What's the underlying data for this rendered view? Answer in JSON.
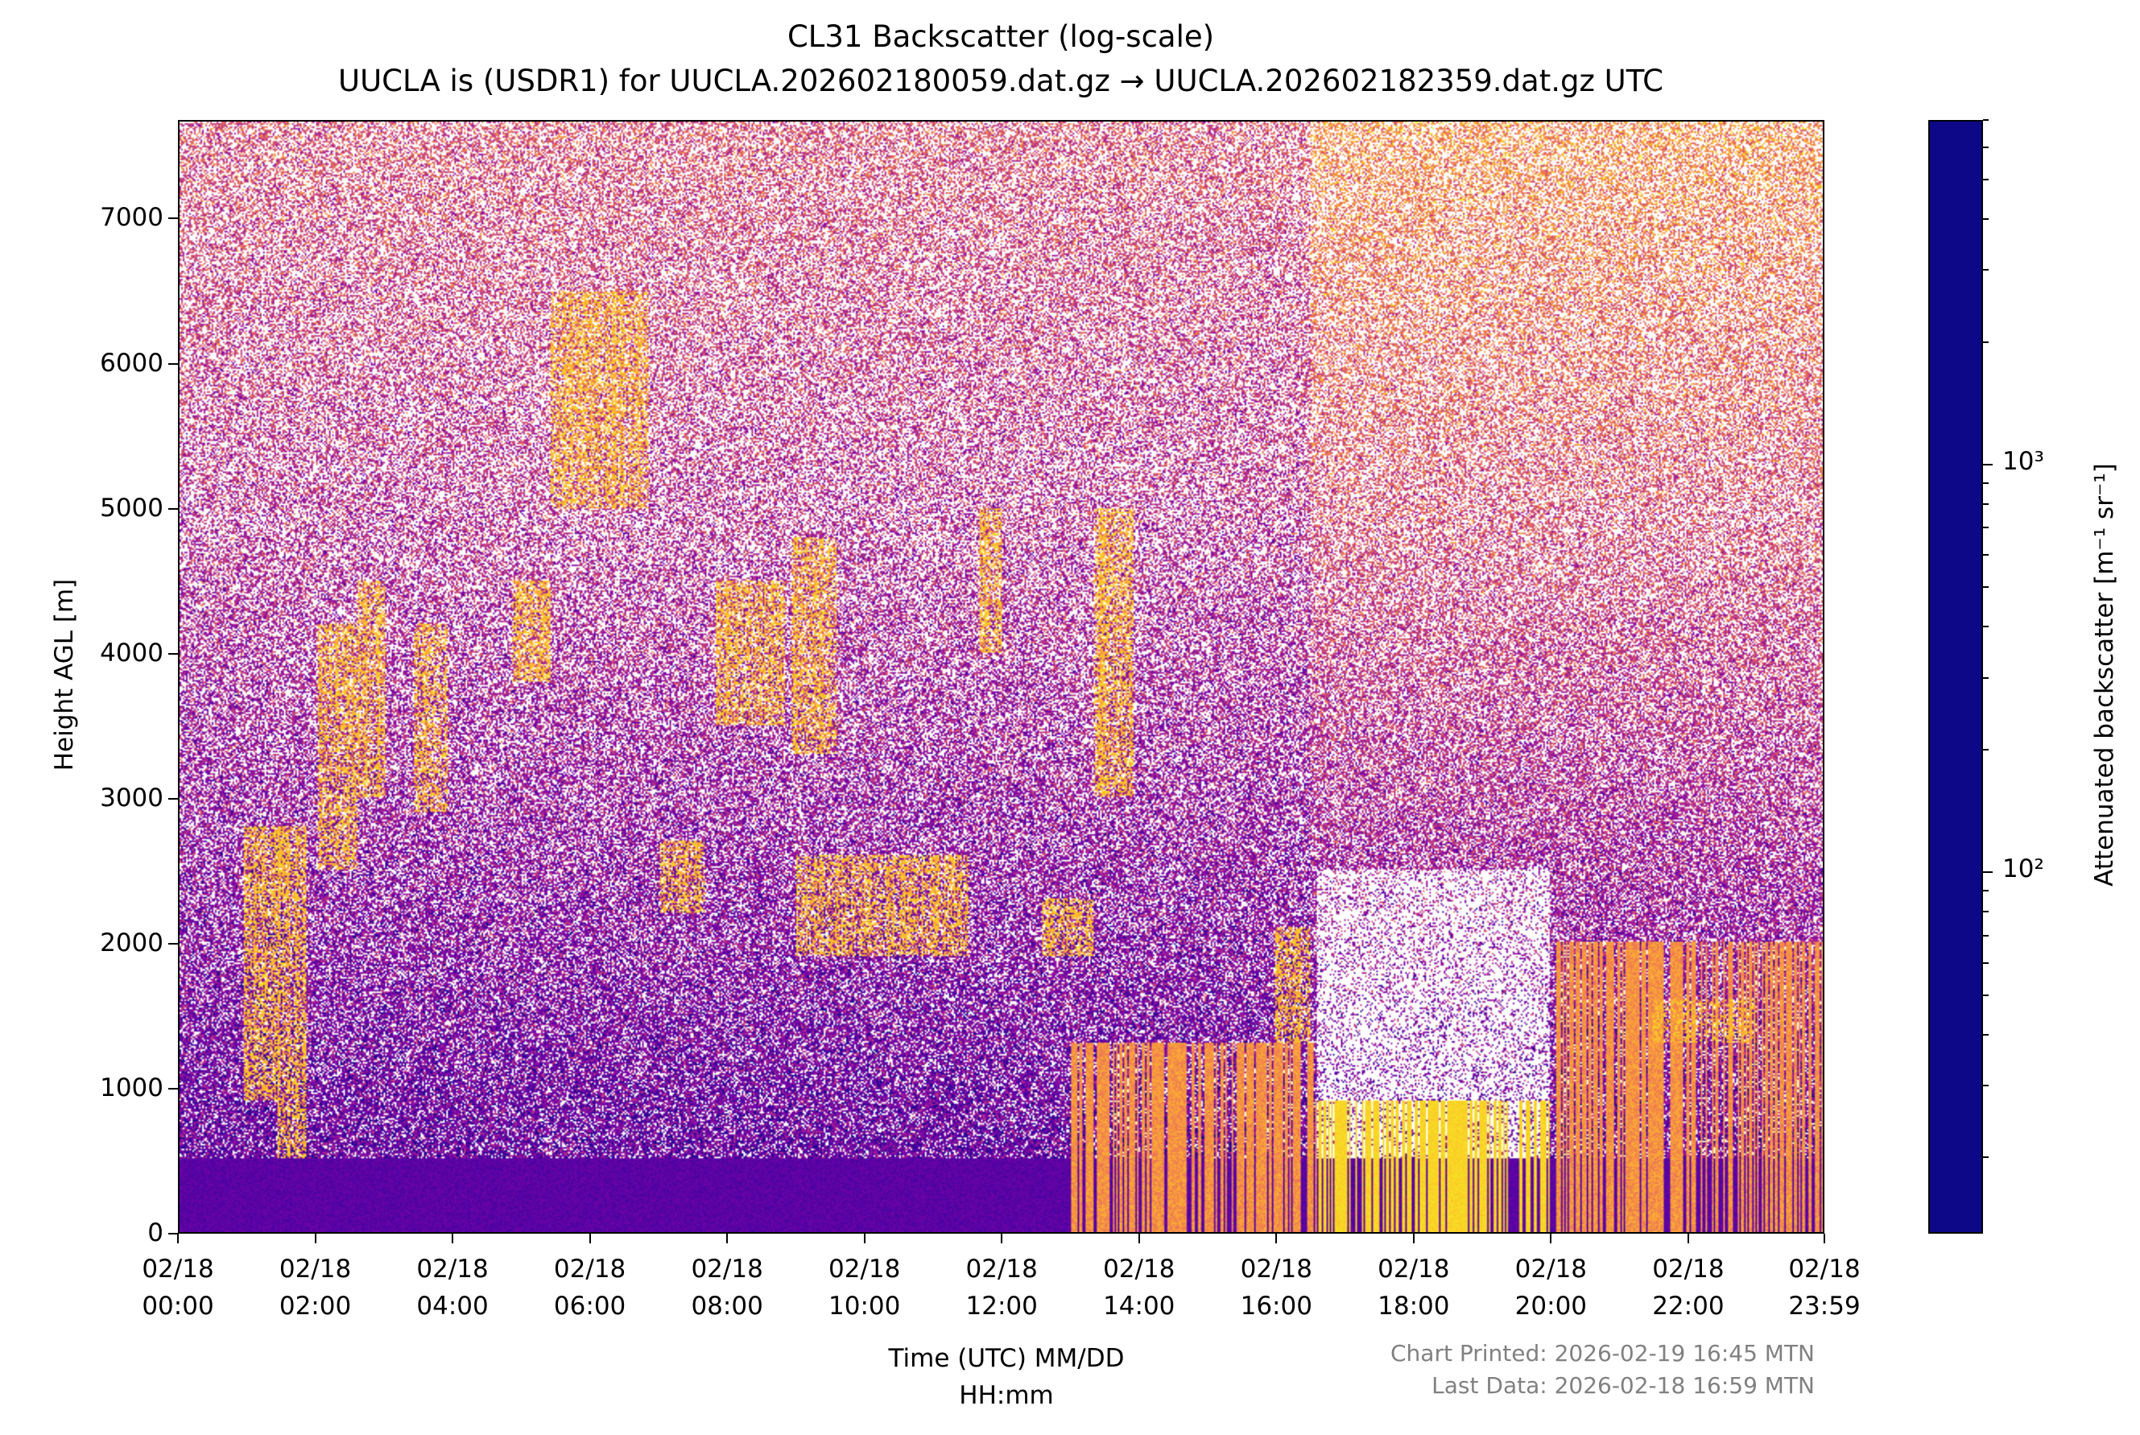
{
  "chart_data": {
    "type": "heatmap",
    "title": "CL31 Backscatter (log-scale)",
    "subtitle": "UUCLA is (USDR1) for UUCLA.202602180059.dat.gz → UUCLA.202602182359.dat.gz UTC",
    "xlabel_line1": "Time (UTC) MM/DD",
    "xlabel_line2": "HH:mm",
    "ylabel": "Height AGL [m]",
    "x_ticks": [
      {
        "date": "02/18",
        "time": "00:00"
      },
      {
        "date": "02/18",
        "time": "02:00"
      },
      {
        "date": "02/18",
        "time": "04:00"
      },
      {
        "date": "02/18",
        "time": "06:00"
      },
      {
        "date": "02/18",
        "time": "08:00"
      },
      {
        "date": "02/18",
        "time": "10:00"
      },
      {
        "date": "02/18",
        "time": "12:00"
      },
      {
        "date": "02/18",
        "time": "14:00"
      },
      {
        "date": "02/18",
        "time": "16:00"
      },
      {
        "date": "02/18",
        "time": "18:00"
      },
      {
        "date": "02/18",
        "time": "20:00"
      },
      {
        "date": "02/18",
        "time": "22:00"
      },
      {
        "date": "02/18",
        "time": "23:59"
      }
    ],
    "xlim": [
      "02/18 00:00",
      "02/18 23:59"
    ],
    "y_ticks": [
      "0",
      "1000",
      "2000",
      "3000",
      "4000",
      "5000",
      "6000",
      "7000"
    ],
    "ylim": [
      0,
      7680
    ],
    "colorbar": {
      "label": "Attenuated backscatter [m⁻¹ sr⁻¹]",
      "scale": "log",
      "colormap": "plasma",
      "range": [
        13,
        7000
      ],
      "major_ticks": [
        {
          "value": 100,
          "label": "10²"
        },
        {
          "value": 1000,
          "label": "10³"
        }
      ]
    },
    "features": [
      {
        "start": "00:55",
        "end": "01:25",
        "bottom_m": 900,
        "top_m": 2300
      },
      {
        "start": "00:55",
        "end": "01:35",
        "bottom_m": 2300,
        "top_m": 2800
      },
      {
        "start": "01:25",
        "end": "01:50",
        "bottom_m": 500,
        "top_m": 2800
      },
      {
        "start": "02:00",
        "end": "02:35",
        "bottom_m": 2500,
        "top_m": 4200
      },
      {
        "start": "02:35",
        "end": "03:00",
        "bottom_m": 3000,
        "top_m": 4500
      },
      {
        "start": "03:25",
        "end": "03:55",
        "bottom_m": 2900,
        "top_m": 4200
      },
      {
        "start": "04:50",
        "end": "05:25",
        "bottom_m": 3800,
        "top_m": 4500
      },
      {
        "start": "05:25",
        "end": "06:50",
        "bottom_m": 5000,
        "top_m": 6500
      },
      {
        "start": "07:00",
        "end": "07:40",
        "bottom_m": 2200,
        "top_m": 2700
      },
      {
        "start": "07:50",
        "end": "08:50",
        "bottom_m": 3500,
        "top_m": 4500
      },
      {
        "start": "08:55",
        "end": "09:35",
        "bottom_m": 3300,
        "top_m": 4800
      },
      {
        "start": "09:00",
        "end": "11:30",
        "bottom_m": 1900,
        "top_m": 2600
      },
      {
        "start": "11:40",
        "end": "12:00",
        "bottom_m": 4000,
        "top_m": 5000
      },
      {
        "start": "12:35",
        "end": "13:20",
        "bottom_m": 1900,
        "top_m": 2300
      },
      {
        "start": "13:20",
        "end": "13:55",
        "bottom_m": 3000,
        "top_m": 5000
      },
      {
        "start": "16:00",
        "end": "16:30",
        "bottom_m": 1300,
        "top_m": 2100
      },
      {
        "start": "13:00",
        "end": "16:35",
        "bottom_m": 0,
        "top_m": 1300
      },
      {
        "start": "16:35",
        "end": "20:00",
        "bottom_m": 0,
        "top_m": 900
      },
      {
        "start": "20:00",
        "end": "23:59",
        "bottom_m": 0,
        "top_m": 2000
      },
      {
        "start": "21:30",
        "end": "23:00",
        "bottom_m": 1300,
        "top_m": 1600
      }
    ]
  },
  "footer": {
    "printed": "Chart Printed: 2026-02-19 16:45 MTN",
    "last_data": "Last Data: 2026-02-18 16:59 MTN",
    "color": "#808080"
  }
}
